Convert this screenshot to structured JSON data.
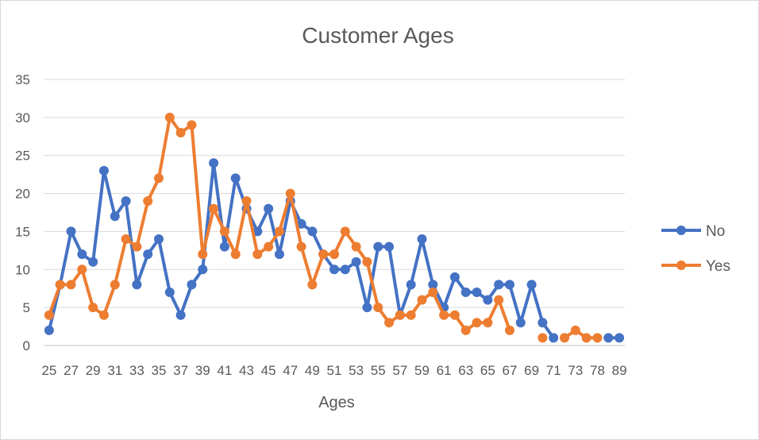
{
  "chart_data": {
    "type": "line",
    "title": "Customer Ages",
    "xlabel": "Ages",
    "ylabel": "",
    "ylim": [
      0,
      35
    ],
    "yticks": [
      0,
      5,
      10,
      15,
      20,
      25,
      30,
      35
    ],
    "grid": true,
    "legend_position": "right",
    "categories": [
      25,
      26,
      27,
      28,
      29,
      30,
      31,
      32,
      33,
      34,
      35,
      36,
      37,
      38,
      39,
      40,
      41,
      42,
      43,
      44,
      45,
      46,
      47,
      48,
      49,
      50,
      51,
      52,
      53,
      54,
      55,
      56,
      57,
      58,
      59,
      60,
      61,
      62,
      63,
      64,
      65,
      66,
      67,
      68,
      69,
      70,
      71,
      72,
      73,
      74,
      78,
      80,
      89
    ],
    "x_tick_labels": [
      "25",
      "27",
      "29",
      "31",
      "33",
      "35",
      "37",
      "39",
      "41",
      "43",
      "45",
      "47",
      "49",
      "51",
      "53",
      "55",
      "57",
      "59",
      "61",
      "63",
      "65",
      "67",
      "69",
      "71",
      "73",
      "78",
      "89"
    ],
    "series": [
      {
        "name": "No",
        "color": "#4472c4",
        "values": [
          2,
          8,
          15,
          12,
          11,
          23,
          17,
          19,
          8,
          12,
          14,
          7,
          4,
          8,
          10,
          24,
          13,
          22,
          18,
          15,
          18,
          12,
          19,
          16,
          15,
          12,
          10,
          10,
          11,
          5,
          13,
          13,
          4,
          8,
          14,
          8,
          5,
          9,
          7,
          7,
          6,
          8,
          8,
          3,
          8,
          3,
          1,
          null,
          null,
          null,
          null,
          1,
          1
        ]
      },
      {
        "name": "Yes",
        "color": "#ed7d31",
        "values": [
          4,
          8,
          8,
          10,
          5,
          4,
          8,
          14,
          13,
          19,
          22,
          30,
          28,
          29,
          12,
          18,
          15,
          12,
          19,
          12,
          13,
          15,
          20,
          13,
          8,
          12,
          12,
          15,
          13,
          11,
          5,
          3,
          4,
          4,
          6,
          7,
          4,
          4,
          2,
          3,
          3,
          6,
          2,
          null,
          null,
          1,
          null,
          1,
          2,
          1,
          1,
          null,
          null
        ]
      }
    ]
  }
}
